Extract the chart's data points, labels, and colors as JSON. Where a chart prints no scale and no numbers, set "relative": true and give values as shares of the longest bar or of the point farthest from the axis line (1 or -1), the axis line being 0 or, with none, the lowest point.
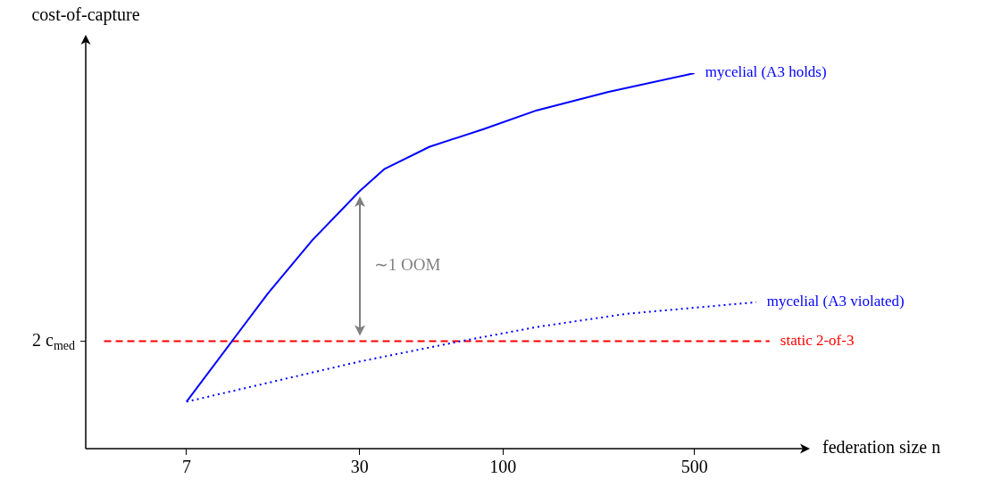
{
  "chart_data": {
    "type": "line",
    "relative": true,
    "xlabel": "federation size n",
    "ylabel": "cost-of-capture",
    "log": "x",
    "xlim": [
      3,
      1300
    ],
    "xticks": [
      7,
      30,
      100,
      500
    ],
    "legend": false,
    "marker": "none",
    "series": [
      {
        "name": "mycelial (A3 holds)",
        "color": "#0000ff",
        "line_style": "solid",
        "x": [
          7,
          10.3,
          13.9,
          20.2,
          30,
          37,
          54,
          85,
          133,
          243,
          500
        ],
        "values": [
          0.125,
          0.288,
          0.414,
          0.556,
          0.686,
          0.745,
          0.804,
          0.851,
          0.901,
          0.95,
          1
        ]
      },
      {
        "name": "mycelial (A3 violated)",
        "color": "#0000ff",
        "line_style": "dotted",
        "x": [
          7,
          30,
          70,
          133,
          282,
          840
        ],
        "values": [
          0.125,
          0.232,
          0.286,
          0.324,
          0.359,
          0.39
        ]
      },
      {
        "name": "static 2-of-3",
        "color": "#ff0000",
        "line_style": "dashed",
        "x": [
          3.5,
          940
        ],
        "values": [
          0.286,
          0.286
        ]
      }
    ],
    "annotations": [
      "2 c$_{med}$",
      "∼1 OOM"
    ]
  }
}
